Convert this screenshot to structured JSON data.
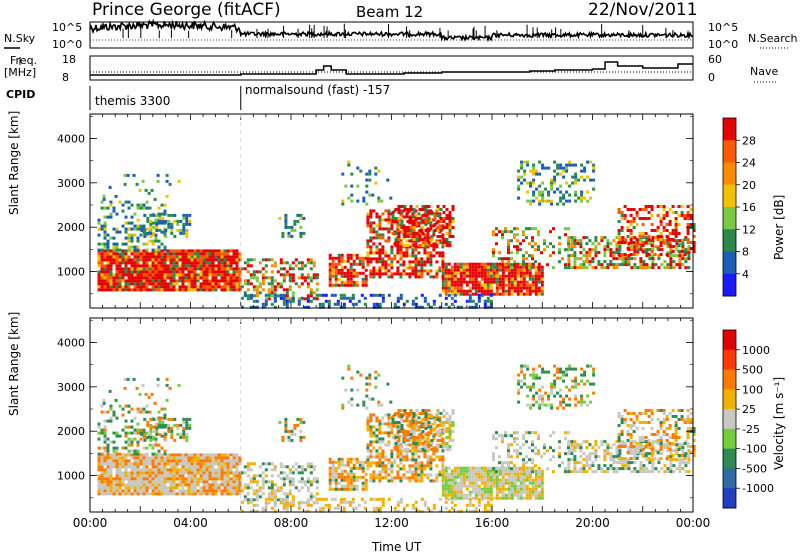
{
  "header": {
    "station": "Prince George (fitACF)",
    "beam": "Beam 12",
    "date": "22/Nov/2011"
  },
  "top_panels": {
    "nsky_label": "N.Sky",
    "nsky_ticks": [
      "10^5",
      "10^0"
    ],
    "nsearch_label": "N.Search",
    "freq_label": "Freq.",
    "freq_unit": "[MHz]",
    "freq_ticks": [
      "18",
      "8"
    ],
    "nave_ticks": [
      "60",
      "0"
    ],
    "nave_label": "Nave",
    "cpid_label": "CPID",
    "cpid_segments": [
      {
        "label": "themis 3300",
        "start_hour": 0
      },
      {
        "label": "normalsound (fast) -157",
        "start_hour": 6
      }
    ]
  },
  "chart_data": [
    {
      "type": "heatmap",
      "name": "power",
      "ylabel": "Slant Range [km]",
      "yticks": [
        1000,
        2000,
        3000,
        4000
      ],
      "ylim": [
        180,
        4550
      ],
      "xlim": [
        0,
        24
      ],
      "colorbar": {
        "label": "Power [dB]",
        "ticks": [
          "4",
          "8",
          "12",
          "16",
          "20",
          "24",
          "28"
        ],
        "colors": [
          "#1a1aff",
          "#1a5fb4",
          "#2a8a4a",
          "#7ac943",
          "#f2c200",
          "#ff8c00",
          "#ff5a00",
          "#e60000"
        ]
      }
    },
    {
      "type": "heatmap",
      "name": "velocity",
      "ylabel": "Slant Range [km]",
      "yticks": [
        1000,
        2000,
        3000,
        4000
      ],
      "ylim": [
        180,
        4550
      ],
      "xlim": [
        0,
        24
      ],
      "xlabel": "Time UT",
      "xticks": [
        "00:00",
        "04:00",
        "08:00",
        "12:00",
        "16:00",
        "20:00",
        "00:00"
      ],
      "colorbar": {
        "label": "Velocity [m s⁻¹]",
        "ticks": [
          "1000",
          "500",
          "100",
          "25",
          "-25",
          "-100",
          "-500",
          "-1000"
        ],
        "colors": [
          "#1e3fbf",
          "#2e6aa8",
          "#2f8a55",
          "#6fce3a",
          "#c8c8c0",
          "#f2b000",
          "#ff7a00",
          "#ff3a00",
          "#e00000"
        ]
      }
    }
  ]
}
